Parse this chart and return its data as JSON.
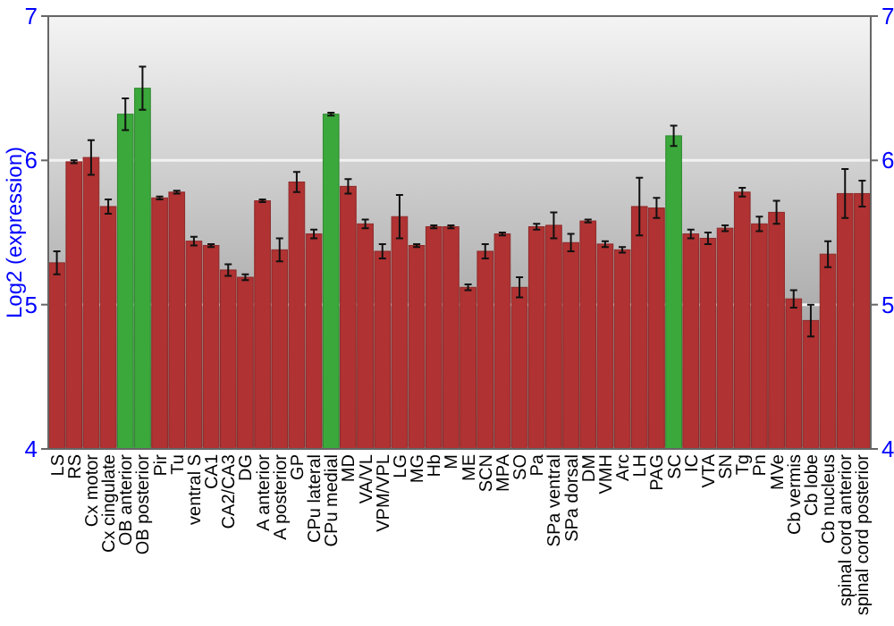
{
  "chart_data": {
    "type": "bar",
    "ylabel": "Log2 (expression)",
    "categories": [
      "LS",
      "RS",
      "Cx motor",
      "Cx cingulate",
      "OB anterior",
      "OB posterior",
      "Pir",
      "Tu",
      "ventral S",
      "CA1",
      "CA2/CA3",
      "DG",
      "A anterior",
      "A posterior",
      "GP",
      "CPu lateral",
      "CPu medial",
      "MD",
      "VA/VL",
      "VPM/VPL",
      "LG",
      "MG",
      "Hb",
      "M",
      "ME",
      "SCN",
      "MPA",
      "SO",
      "Pa",
      "SPa ventral",
      "SPa dorsal",
      "DM",
      "VMH",
      "Arc",
      "LH",
      "PAG",
      "SC",
      "IC",
      "VTA",
      "SN",
      "Tg",
      "Pn",
      "MVe",
      "Cb vermis",
      "Cb lobe",
      "Cb nucleus",
      "spinal cord anterior",
      "spinal cord posterior"
    ],
    "values": [
      5.29,
      5.99,
      6.02,
      5.68,
      6.32,
      6.5,
      5.74,
      5.78,
      5.44,
      5.41,
      5.24,
      5.19,
      5.72,
      5.38,
      5.85,
      5.49,
      6.32,
      5.82,
      5.56,
      5.37,
      5.61,
      5.41,
      5.54,
      5.54,
      5.12,
      5.37,
      5.49,
      5.12,
      5.54,
      5.55,
      5.43,
      5.58,
      5.42,
      5.38,
      5.68,
      5.67,
      6.17,
      5.49,
      5.46,
      5.53,
      5.78,
      5.56,
      5.64,
      5.04,
      4.89,
      5.35,
      5.77,
      5.77
    ],
    "errors": [
      0.08,
      0.01,
      0.12,
      0.05,
      0.11,
      0.15,
      0.01,
      0.01,
      0.03,
      0.01,
      0.04,
      0.02,
      0.01,
      0.08,
      0.07,
      0.03,
      0.01,
      0.05,
      0.03,
      0.05,
      0.15,
      0.01,
      0.01,
      0.01,
      0.02,
      0.05,
      0.01,
      0.07,
      0.02,
      0.09,
      0.06,
      0.01,
      0.02,
      0.02,
      0.2,
      0.07,
      0.07,
      0.03,
      0.04,
      0.02,
      0.03,
      0.05,
      0.08,
      0.06,
      0.11,
      0.09,
      0.17,
      0.09
    ],
    "colors": [
      "#b03232",
      "#b03232",
      "#b03232",
      "#b03232",
      "#3ba83b",
      "#3ba83b",
      "#b03232",
      "#b03232",
      "#b03232",
      "#b03232",
      "#b03232",
      "#b03232",
      "#b03232",
      "#b03232",
      "#b03232",
      "#b03232",
      "#3ba83b",
      "#b03232",
      "#b03232",
      "#b03232",
      "#b03232",
      "#b03232",
      "#b03232",
      "#b03232",
      "#b03232",
      "#b03232",
      "#b03232",
      "#b03232",
      "#b03232",
      "#b03232",
      "#b03232",
      "#b03232",
      "#b03232",
      "#b03232",
      "#b03232",
      "#b03232",
      "#3ba83b",
      "#b03232",
      "#b03232",
      "#b03232",
      "#b03232",
      "#b03232",
      "#b03232",
      "#b03232",
      "#b03232",
      "#b03232",
      "#b03232",
      "#b03232"
    ],
    "ylim": [
      4,
      7
    ],
    "yticks": [
      4,
      5,
      6,
      7
    ],
    "y2lim": [
      4,
      7
    ],
    "y2ticks": [
      4,
      5,
      6,
      7
    ],
    "grid": "y"
  }
}
